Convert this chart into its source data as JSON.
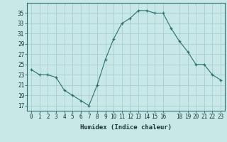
{
  "x": [
    0,
    1,
    2,
    3,
    4,
    5,
    6,
    7,
    8,
    9,
    10,
    11,
    12,
    13,
    14,
    15,
    16,
    17,
    18,
    19,
    20,
    21,
    22,
    23
  ],
  "y": [
    24,
    23,
    23,
    22.5,
    20,
    19,
    18,
    17,
    21,
    26,
    30,
    33,
    34,
    35.5,
    35.5,
    35,
    35,
    32,
    29.5,
    27.5,
    25,
    25,
    23,
    22
  ],
  "line_color": "#2d6e6e",
  "marker": "+",
  "bg_color": "#c8e8e8",
  "grid_color": "#aacece",
  "xlabel": "Humidex (Indice chaleur)",
  "ylim": [
    16,
    37
  ],
  "xlim": [
    -0.5,
    23.5
  ],
  "yticks": [
    17,
    19,
    21,
    23,
    25,
    27,
    29,
    31,
    33,
    35
  ],
  "xticks": [
    0,
    1,
    2,
    3,
    4,
    5,
    6,
    7,
    8,
    9,
    10,
    11,
    12,
    13,
    14,
    15,
    16,
    18,
    19,
    20,
    21,
    22,
    23
  ],
  "xtick_labels": [
    "0",
    "1",
    "2",
    "3",
    "4",
    "5",
    "6",
    "7",
    "8",
    "9",
    "10",
    "11",
    "12",
    "13",
    "14",
    "15",
    "16",
    "18",
    "19",
    "20",
    "21",
    "22",
    "23"
  ],
  "font_color": "#1a3333",
  "axis_color": "#2d6e6e",
  "xlabel_fontsize": 6.5,
  "tick_fontsize": 5.5
}
